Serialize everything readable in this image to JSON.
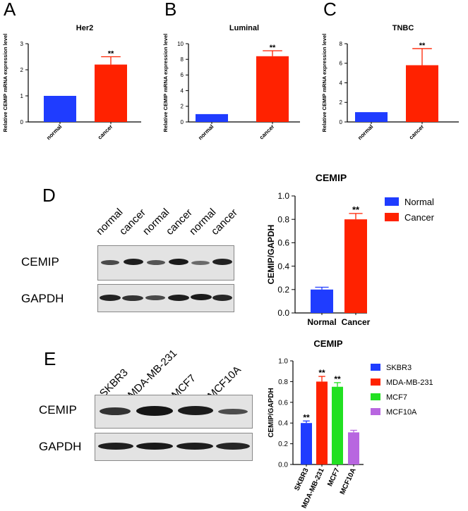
{
  "panels": {
    "A": "A",
    "B": "B",
    "C": "C",
    "D": "D",
    "E": "E"
  },
  "colors": {
    "blue": "#1f3cff",
    "red": "#ff2200",
    "green": "#22e022",
    "purple": "#b866e0"
  },
  "chart_data": [
    {
      "id": "her2",
      "type": "bar",
      "title": "Her2",
      "ylabel": "Relative CEMIP mRNA expression level",
      "xlabel": "",
      "categories": [
        "normal",
        "cancer"
      ],
      "values": [
        1.0,
        2.2
      ],
      "errors": [
        0,
        0.3
      ],
      "ylim": [
        0,
        3
      ],
      "yticks": [
        "0",
        "1",
        "2",
        "3"
      ],
      "annotations": [
        "",
        "**"
      ]
    },
    {
      "id": "luminal",
      "type": "bar",
      "title": "Luminal",
      "ylabel": "Relative CEMIP mRNA expression level",
      "xlabel": "",
      "categories": [
        "normal",
        "cancer"
      ],
      "values": [
        1.0,
        8.4
      ],
      "errors": [
        0,
        0.7
      ],
      "ylim": [
        0,
        10
      ],
      "yticks": [
        "0",
        "2",
        "4",
        "6",
        "8",
        "10"
      ],
      "annotations": [
        "",
        "**"
      ]
    },
    {
      "id": "tnbc",
      "type": "bar",
      "title": "TNBC",
      "ylabel": "Relative CEMIP mRNA expression level",
      "xlabel": "",
      "categories": [
        "normal",
        "cancer"
      ],
      "values": [
        1.0,
        5.8
      ],
      "errors": [
        0,
        1.7
      ],
      "ylim": [
        0,
        8
      ],
      "yticks": [
        "0",
        "2",
        "4",
        "6",
        "8"
      ],
      "annotations": [
        "",
        "**"
      ]
    },
    {
      "id": "d-bar",
      "type": "bar",
      "title": "CEMIP",
      "ylabel": "CEMIP/GAPDH",
      "xlabel": "",
      "categories": [
        "Normal",
        "Cancer"
      ],
      "values": [
        0.2,
        0.8
      ],
      "errors": [
        0.02,
        0.05
      ],
      "ylim": [
        0,
        1.0
      ],
      "yticks": [
        "0.0",
        "0.2",
        "0.4",
        "0.6",
        "0.8",
        "1.0"
      ],
      "annotations": [
        "",
        "**"
      ],
      "legend": [
        "Normal",
        "Cancer"
      ]
    },
    {
      "id": "e-bar",
      "type": "bar",
      "title": "CEMIP",
      "ylabel": "CEMIP/GAPDH",
      "xlabel": "",
      "categories": [
        "SKBR3",
        "MDA-MB-231",
        "MCF7",
        "MCF10A"
      ],
      "values": [
        0.4,
        0.8,
        0.75,
        0.31
      ],
      "errors": [
        0.02,
        0.05,
        0.04,
        0.02
      ],
      "ylim": [
        0,
        1.0
      ],
      "yticks": [
        "0.0",
        "0.2",
        "0.4",
        "0.6",
        "0.8",
        "1.0"
      ],
      "annotations": [
        "**",
        "**",
        "**",
        ""
      ],
      "legend": [
        "SKBR3",
        "MDA-MB-231",
        "MCF7",
        "MCF10A"
      ]
    }
  ],
  "blot_d": {
    "lanes": [
      "normal",
      "cancer",
      "normal",
      "cancer",
      "normal",
      "cancer"
    ],
    "rows": [
      "CEMIP",
      "GAPDH"
    ]
  },
  "blot_e": {
    "lanes": [
      "SKBR3",
      "MDA-MB-231",
      "MCF7",
      "MCF10A"
    ],
    "rows": [
      "CEMIP",
      "GAPDH"
    ]
  }
}
